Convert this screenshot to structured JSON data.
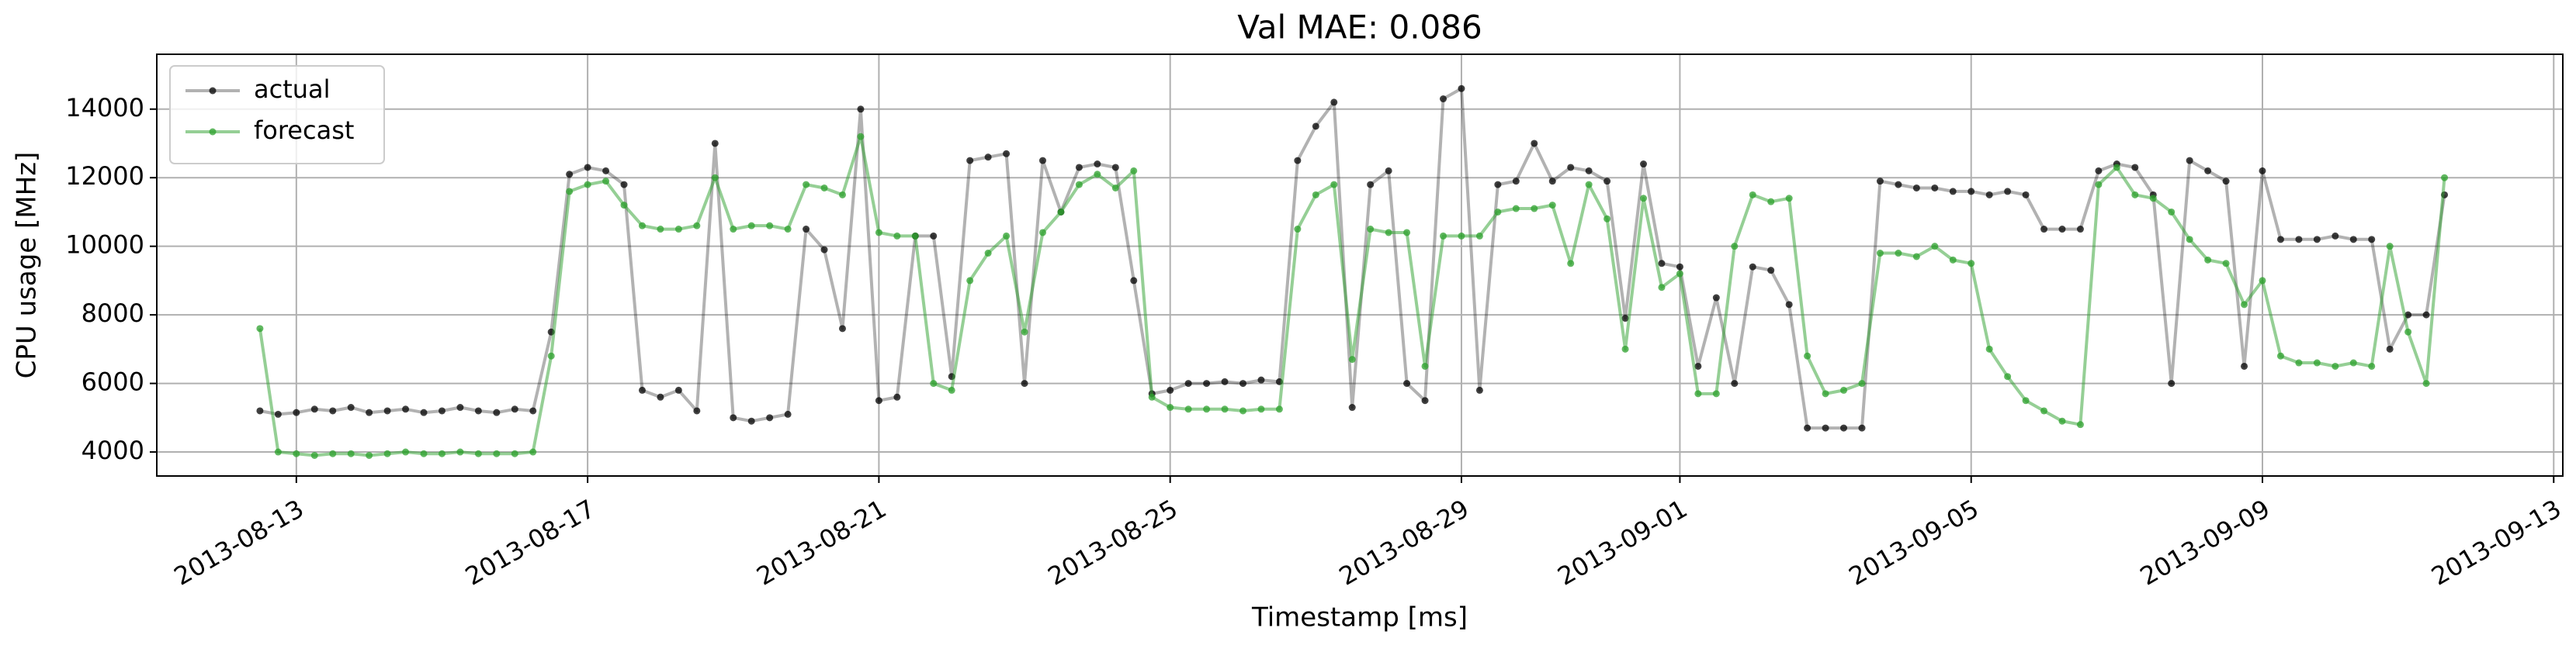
{
  "chart_data": {
    "type": "line",
    "title": "Val MAE: 0.086",
    "xlabel": "Timestamp [ms]",
    "ylabel": "CPU usage [MHz]",
    "grid": true,
    "legend": "upper left",
    "xlim": [
      "2013-08-11 02:00",
      "2013-09-13 03:00"
    ],
    "xticks": [
      "2013-08-13",
      "2013-08-17",
      "2013-08-21",
      "2013-08-25",
      "2013-08-29",
      "2013-09-01",
      "2013-09-05",
      "2013-09-09",
      "2013-09-13"
    ],
    "ylim": [
      3300,
      15600
    ],
    "yticks": [
      4000,
      6000,
      8000,
      10000,
      12000,
      14000
    ],
    "x": [
      "2013-08-12 12:00",
      "2013-08-12 18:00",
      "2013-08-13 00:00",
      "2013-08-13 06:00",
      "2013-08-13 12:00",
      "2013-08-13 18:00",
      "2013-08-14 00:00",
      "2013-08-14 06:00",
      "2013-08-14 12:00",
      "2013-08-14 18:00",
      "2013-08-15 00:00",
      "2013-08-15 06:00",
      "2013-08-15 12:00",
      "2013-08-15 18:00",
      "2013-08-16 00:00",
      "2013-08-16 06:00",
      "2013-08-16 12:00",
      "2013-08-16 18:00",
      "2013-08-17 00:00",
      "2013-08-17 06:00",
      "2013-08-17 12:00",
      "2013-08-17 18:00",
      "2013-08-18 00:00",
      "2013-08-18 06:00",
      "2013-08-18 12:00",
      "2013-08-18 18:00",
      "2013-08-19 00:00",
      "2013-08-19 06:00",
      "2013-08-19 12:00",
      "2013-08-19 18:00",
      "2013-08-20 00:00",
      "2013-08-20 06:00",
      "2013-08-20 12:00",
      "2013-08-20 18:00",
      "2013-08-21 00:00",
      "2013-08-21 06:00",
      "2013-08-21 12:00",
      "2013-08-21 18:00",
      "2013-08-22 00:00",
      "2013-08-22 06:00",
      "2013-08-22 12:00",
      "2013-08-22 18:00",
      "2013-08-23 00:00",
      "2013-08-23 06:00",
      "2013-08-23 12:00",
      "2013-08-23 18:00",
      "2013-08-24 00:00",
      "2013-08-24 06:00",
      "2013-08-24 12:00",
      "2013-08-24 18:00",
      "2013-08-25 00:00",
      "2013-08-25 06:00",
      "2013-08-25 12:00",
      "2013-08-25 18:00",
      "2013-08-26 00:00",
      "2013-08-26 06:00",
      "2013-08-26 12:00",
      "2013-08-26 18:00",
      "2013-08-27 00:00",
      "2013-08-27 06:00",
      "2013-08-27 12:00",
      "2013-08-27 18:00",
      "2013-08-28 00:00",
      "2013-08-28 06:00",
      "2013-08-28 12:00",
      "2013-08-28 18:00",
      "2013-08-29 00:00",
      "2013-08-29 06:00",
      "2013-08-29 12:00",
      "2013-08-29 18:00",
      "2013-08-30 00:00",
      "2013-08-30 06:00",
      "2013-08-30 12:00",
      "2013-08-30 18:00",
      "2013-08-31 00:00",
      "2013-08-31 06:00",
      "2013-08-31 12:00",
      "2013-08-31 18:00",
      "2013-09-01 00:00",
      "2013-09-01 06:00",
      "2013-09-01 12:00",
      "2013-09-01 18:00",
      "2013-09-02 00:00",
      "2013-09-02 06:00",
      "2013-09-02 12:00",
      "2013-09-02 18:00",
      "2013-09-03 00:00",
      "2013-09-03 06:00",
      "2013-09-03 12:00",
      "2013-09-03 18:00",
      "2013-09-04 00:00",
      "2013-09-04 06:00",
      "2013-09-04 12:00",
      "2013-09-04 18:00",
      "2013-09-05 00:00",
      "2013-09-05 06:00",
      "2013-09-05 12:00",
      "2013-09-05 18:00",
      "2013-09-06 00:00",
      "2013-09-06 06:00",
      "2013-09-06 12:00",
      "2013-09-06 18:00",
      "2013-09-07 00:00",
      "2013-09-07 06:00",
      "2013-09-07 12:00",
      "2013-09-07 18:00",
      "2013-09-08 00:00",
      "2013-09-08 06:00",
      "2013-09-08 12:00",
      "2013-09-08 18:00",
      "2013-09-09 00:00",
      "2013-09-09 06:00",
      "2013-09-09 12:00",
      "2013-09-09 18:00",
      "2013-09-10 00:00",
      "2013-09-10 06:00",
      "2013-09-10 12:00",
      "2013-09-10 18:00",
      "2013-09-11 00:00",
      "2013-09-11 06:00",
      "2013-09-11 12:00"
    ],
    "series": [
      {
        "name": "actual",
        "color": "#000000",
        "line_opacity": 0.3,
        "values": [
          5200,
          5100,
          5150,
          5250,
          5200,
          5300,
          5150,
          5200,
          5250,
          5150,
          5200,
          5300,
          5200,
          5150,
          5250,
          5200,
          7500,
          12100,
          12300,
          12200,
          11800,
          5800,
          5600,
          5800,
          5200,
          13000,
          5000,
          4900,
          5000,
          5100,
          10500,
          9900,
          7600,
          14000,
          5500,
          5600,
          10300,
          10300,
          6200,
          12500,
          12600,
          12700,
          6000,
          12500,
          11000,
          12300,
          12400,
          12300,
          9000,
          5700,
          5800,
          6000,
          6000,
          6050,
          6000,
          6100,
          6050,
          12500,
          13500,
          14200,
          5300,
          11800,
          12200,
          6000,
          5500,
          14300,
          14600,
          5800,
          11800,
          11900,
          13000,
          11900,
          12300,
          12200,
          11900,
          7900,
          12400,
          9500,
          9400,
          6500,
          8500,
          6000,
          9400,
          9300,
          8300,
          4700,
          4700,
          4700,
          4700,
          11900,
          11800,
          11700,
          11700,
          11600,
          11600,
          11500,
          11600,
          11500,
          10500,
          10500,
          10500,
          12200,
          12400,
          12300,
          11500,
          6000,
          12500,
          12200,
          11900,
          6500,
          12200,
          10200,
          10200,
          10200,
          10300,
          10200,
          10200,
          7000,
          8000,
          8000,
          11500
        ]
      },
      {
        "name": "forecast",
        "color": "#2ca02c",
        "line_opacity": 0.5,
        "values": [
          7600,
          4000,
          3950,
          3900,
          3950,
          3950,
          3900,
          3950,
          4000,
          3950,
          3950,
          4000,
          3950,
          3950,
          3950,
          4000,
          6800,
          11600,
          11800,
          11900,
          11200,
          10600,
          10500,
          10500,
          10600,
          12000,
          10500,
          10600,
          10600,
          10500,
          11800,
          11700,
          11500,
          13200,
          10400,
          10300,
          10300,
          6000,
          5800,
          9000,
          9800,
          10300,
          7500,
          10400,
          11000,
          11800,
          12100,
          11700,
          12200,
          5600,
          5300,
          5250,
          5250,
          5250,
          5200,
          5250,
          5250,
          10500,
          11500,
          11800,
          6700,
          10500,
          10400,
          10400,
          6500,
          10300,
          10300,
          10300,
          11000,
          11100,
          11100,
          11200,
          9500,
          11800,
          10800,
          7000,
          11400,
          8800,
          9200,
          5700,
          5700,
          10000,
          11500,
          11300,
          11400,
          6800,
          5700,
          5800,
          6000,
          9800,
          9800,
          9700,
          10000,
          9600,
          9500,
          7000,
          6200,
          5500,
          5200,
          4900,
          4800,
          11800,
          12300,
          11500,
          11400,
          11000,
          10200,
          9600,
          9500,
          8300,
          9000,
          6800,
          6600,
          6600,
          6500,
          6600,
          6500,
          10000,
          7500,
          6000,
          12000
        ]
      }
    ]
  }
}
